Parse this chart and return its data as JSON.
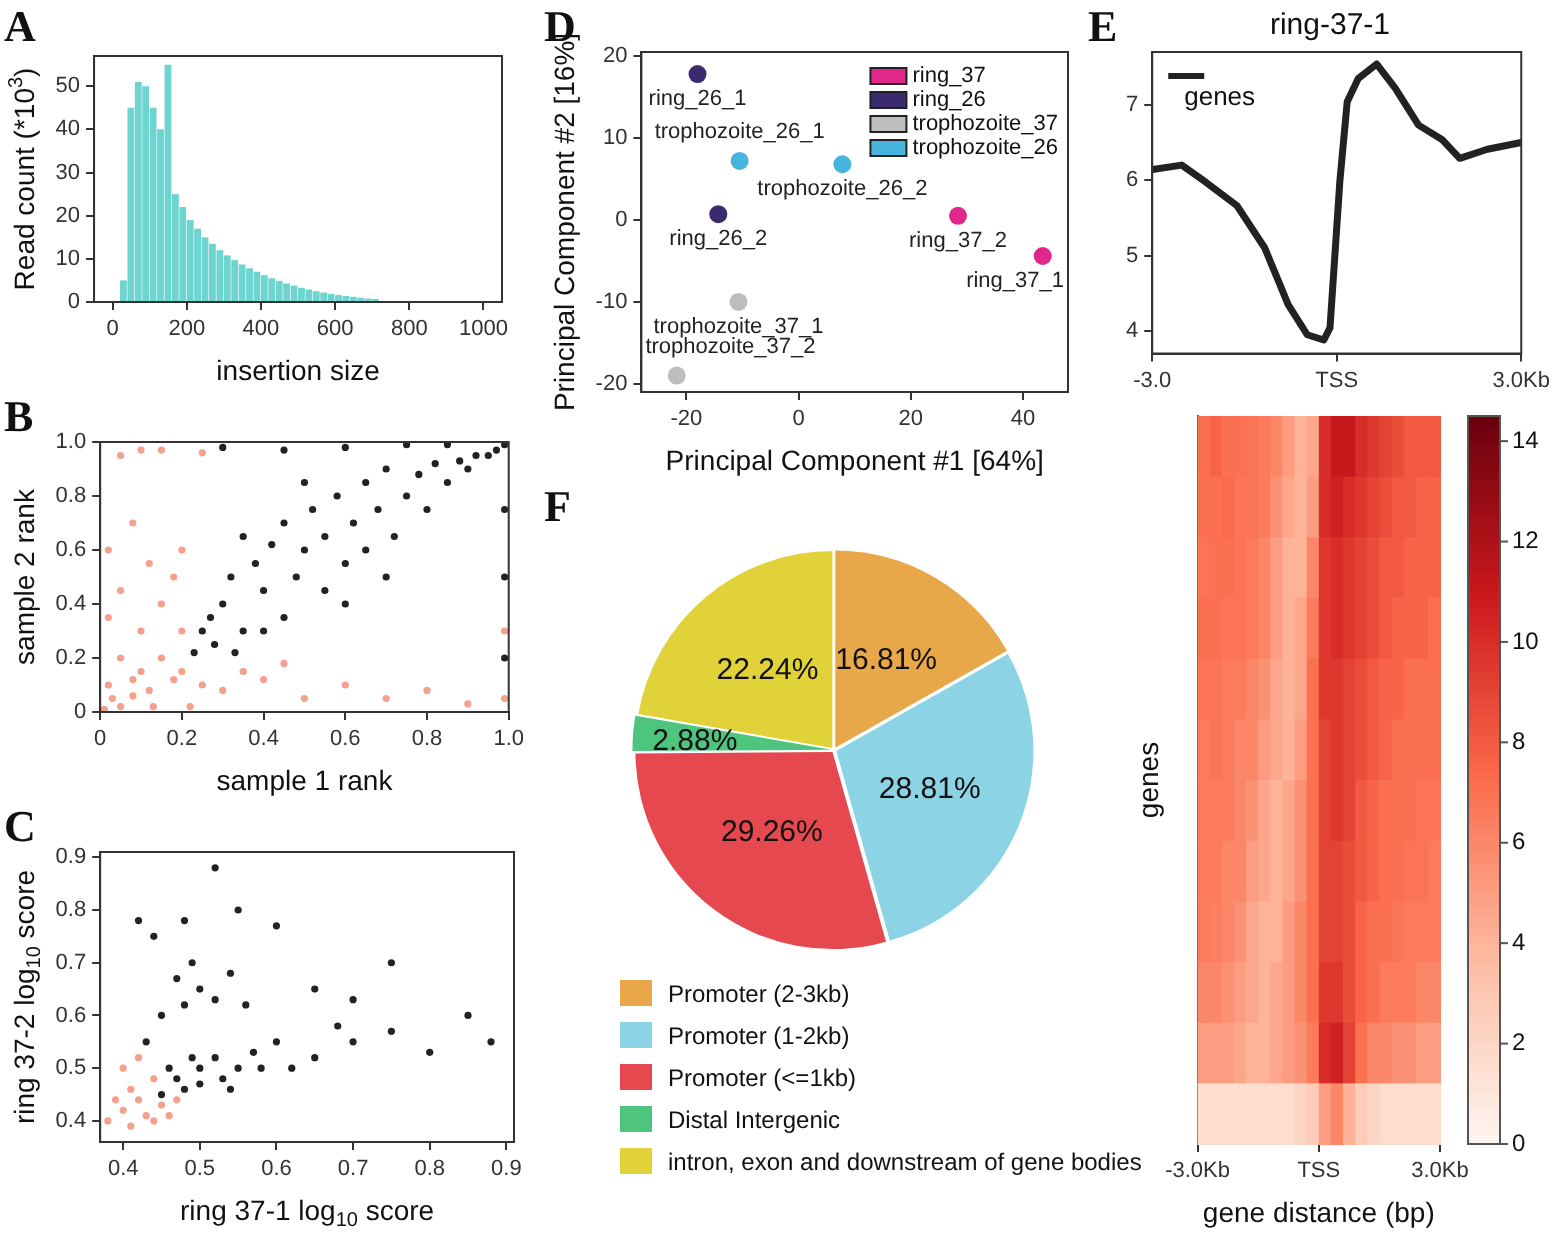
{
  "chart_data": [
    {
      "type": "histogram",
      "annotations": [
        "A"
      ],
      "xlabel": "insertion size",
      "ylabel": "Read count (*10$^{3}$)",
      "color": "#6dd4d0",
      "bins": [
        20,
        40,
        60,
        80,
        100,
        120,
        140,
        160,
        180,
        200,
        220,
        240,
        260,
        280,
        300,
        320,
        340,
        360,
        380,
        400,
        420,
        440,
        460,
        480,
        500,
        520,
        540,
        560,
        580,
        600,
        620,
        640,
        660,
        680,
        700,
        720
      ],
      "values": [
        5,
        45,
        51,
        50,
        45,
        40,
        55,
        25,
        22,
        19,
        17,
        15,
        13.5,
        12,
        10.8,
        9.7,
        8.7,
        7.8,
        7,
        6.2,
        5.5,
        4.9,
        4.3,
        3.8,
        3.3,
        2.9,
        2.5,
        2.2,
        1.9,
        1.6,
        1.4,
        1.2,
        1,
        0.8,
        0.7
      ],
      "xlim": [
        -50,
        1050
      ],
      "xticks": [
        0,
        200,
        400,
        600,
        800,
        1000
      ],
      "ylim": [
        0,
        57
      ],
      "yticks": [
        0,
        10,
        20,
        30,
        40,
        50
      ]
    },
    {
      "type": "scatter",
      "annotations": [
        "B"
      ],
      "xlabel": "sample 1 rank",
      "ylabel": "sample 2 rank",
      "xlim": [
        0,
        1
      ],
      "ylim": [
        0,
        1
      ],
      "xticks": [
        0,
        0.2,
        0.4,
        0.6,
        0.8,
        {
          "value": 1,
          "label": "1.0"
        }
      ],
      "yticks": [
        0,
        0.2,
        0.4,
        0.6,
        0.8,
        {
          "value": 1,
          "label": "1.0"
        }
      ],
      "marker": "circle",
      "series": [
        {
          "color": "#f4a08c",
          "x": [
            0.01,
            0.03,
            0.05,
            0.02,
            0.08,
            0.1,
            0.05,
            0.12,
            0.15,
            0.18,
            0.2,
            0.1,
            0.02,
            0.15,
            0.2,
            0.25,
            0.3,
            0.4,
            0.5,
            0.6,
            0.7,
            0.8,
            0.9,
            0.99,
            0.99,
            0.05,
            0.18,
            0.12,
            0.08,
            0.2,
            0.05,
            0.15,
            0.25,
            0.1,
            0.02,
            0.22,
            0.35,
            0.45,
            0.08,
            0.13
          ],
          "values": [
            0.01,
            0.05,
            0.02,
            0.1,
            0.06,
            0.15,
            0.2,
            0.08,
            0.2,
            0.12,
            0.3,
            0.3,
            0.35,
            0.4,
            0.15,
            0.1,
            0.08,
            0.12,
            0.05,
            0.1,
            0.05,
            0.08,
            0.03,
            0.05,
            0.3,
            0.45,
            0.5,
            0.55,
            0.7,
            0.6,
            0.95,
            0.97,
            0.96,
            0.97,
            0.6,
            0.02,
            0.15,
            0.18,
            0.12,
            0.02
          ]
        },
        {
          "color": "#222222",
          "x": [
            0.23,
            0.25,
            0.28,
            0.3,
            0.32,
            0.35,
            0.38,
            0.4,
            0.42,
            0.45,
            0.45,
            0.48,
            0.5,
            0.52,
            0.55,
            0.55,
            0.58,
            0.6,
            0.62,
            0.65,
            0.65,
            0.68,
            0.7,
            0.72,
            0.75,
            0.78,
            0.8,
            0.82,
            0.85,
            0.88,
            0.9,
            0.92,
            0.95,
            0.97,
            0.99,
            0.3,
            0.45,
            0.6,
            0.75,
            0.85,
            0.99,
            0.99,
            0.99,
            0.35,
            0.5,
            0.27,
            0.4,
            0.6,
            0.7,
            0.33
          ],
          "values": [
            0.22,
            0.3,
            0.25,
            0.4,
            0.5,
            0.3,
            0.55,
            0.45,
            0.62,
            0.35,
            0.7,
            0.5,
            0.6,
            0.75,
            0.45,
            0.65,
            0.8,
            0.55,
            0.7,
            0.85,
            0.6,
            0.75,
            0.9,
            0.65,
            0.8,
            0.88,
            0.75,
            0.92,
            0.85,
            0.93,
            0.9,
            0.95,
            0.95,
            0.97,
            0.99,
            0.98,
            0.97,
            0.98,
            0.99,
            0.99,
            0.5,
            0.2,
            0.75,
            0.65,
            0.85,
            0.35,
            0.3,
            0.4,
            0.5,
            0.22
          ]
        }
      ]
    },
    {
      "type": "scatter",
      "annotations": [
        "C"
      ],
      "xlabel": "ring 37-1 log$_{10}$ score",
      "ylabel": "ring 37-2 log$_{10}$ score",
      "xlim": [
        0.37,
        0.91
      ],
      "ylim": [
        0.36,
        0.91
      ],
      "xticks": [
        0.4,
        0.5,
        0.6,
        0.7,
        0.8,
        0.9
      ],
      "yticks": [
        0.4,
        0.5,
        0.6,
        0.7,
        0.8,
        0.9
      ],
      "marker": "circle",
      "series": [
        {
          "color": "#222222",
          "x": [
            0.45,
            0.47,
            0.48,
            0.5,
            0.52,
            0.5,
            0.53,
            0.55,
            0.57,
            0.6,
            0.49,
            0.46,
            0.54,
            0.58,
            0.62,
            0.65,
            0.7,
            0.75,
            0.8,
            0.85,
            0.48,
            0.5,
            0.52,
            0.47,
            0.54,
            0.45,
            0.56,
            0.49,
            0.44,
            0.48,
            0.55,
            0.52,
            0.6,
            0.65,
            0.7,
            0.75,
            0.68,
            0.42,
            0.88,
            0.43
          ],
          "values": [
            0.45,
            0.48,
            0.46,
            0.5,
            0.52,
            0.47,
            0.48,
            0.5,
            0.53,
            0.55,
            0.52,
            0.5,
            0.46,
            0.5,
            0.5,
            0.52,
            0.55,
            0.57,
            0.53,
            0.6,
            0.62,
            0.65,
            0.63,
            0.67,
            0.68,
            0.6,
            0.62,
            0.7,
            0.75,
            0.78,
            0.8,
            0.88,
            0.77,
            0.65,
            0.63,
            0.7,
            0.58,
            0.78,
            0.55,
            0.55
          ]
        },
        {
          "color": "#f4a08c",
          "x": [
            0.38,
            0.4,
            0.42,
            0.43,
            0.41,
            0.44,
            0.45,
            0.4,
            0.46,
            0.39,
            0.42,
            0.47,
            0.44,
            0.41
          ],
          "values": [
            0.4,
            0.42,
            0.44,
            0.41,
            0.46,
            0.48,
            0.43,
            0.5,
            0.41,
            0.44,
            0.52,
            0.44,
            0.4,
            0.39
          ]
        }
      ]
    },
    {
      "type": "scatter",
      "xlabel": "Principal Component #1 [64%]",
      "ylabel": "Principal Component #2 [16%]",
      "xlim": [
        -28,
        48
      ],
      "ylim": [
        -21,
        20.5
      ],
      "xticks": [
        -20,
        0,
        20,
        40
      ],
      "yticks": [
        -20,
        -10,
        0,
        10,
        20
      ],
      "legend": "top right",
      "marker": "circle",
      "annotations": [
        "D",
        {
          "text": "ring_26_1",
          "x": -18,
          "y": 17.8
        },
        {
          "text": "trophozoite_26_1",
          "x": -10.5,
          "y": 7.2
        },
        {
          "text": "trophozoite_26_2",
          "x": 7.8,
          "y": 6.8
        },
        {
          "text": "ring_26_2",
          "x": -14.3,
          "y": 0.7
        },
        {
          "text": "ring_37_2",
          "x": 28.4,
          "y": 0.5
        },
        {
          "text": "ring_37_1",
          "x": 43.5,
          "y": -4.4
        },
        {
          "text": "trophozoite_37_1",
          "x": -10.7,
          "y": -10
        },
        {
          "text": "trophozoite_37_2",
          "x": -21.7,
          "y": -19
        }
      ],
      "series": [
        {
          "name": "ring_37",
          "color": "#e0288a",
          "x": [
            28.4,
            43.5
          ],
          "values": [
            0.5,
            -4.4
          ]
        },
        {
          "name": "ring_26",
          "color": "#3b2a6e",
          "x": [
            -18,
            -14.3
          ],
          "values": [
            17.8,
            0.7
          ]
        },
        {
          "name": "trophozoite_37",
          "color": "#bdbdbd",
          "x": [
            -10.7,
            -21.7
          ],
          "values": [
            -10,
            -19
          ]
        },
        {
          "name": "trophozoite_26",
          "color": "#45b5dd",
          "x": [
            -10.5,
            7.8
          ],
          "values": [
            7.2,
            6.8
          ]
        }
      ]
    },
    {
      "type": "line",
      "title": "ring-37-1",
      "annotations": [
        "E"
      ],
      "xlim": [
        -3,
        3
      ],
      "xticks": [
        {
          "value": -3,
          "label": "-3.0"
        },
        {
          "value": 0,
          "label": "TSS"
        },
        {
          "value": 3,
          "label": "3.0Kb"
        }
      ],
      "ylim": [
        3.7,
        7.7
      ],
      "yticks": [
        4,
        5,
        6,
        7
      ],
      "legend": "top left",
      "marker": "none",
      "series": [
        {
          "name": "genes",
          "color": "#222222",
          "x": [
            -3,
            -2.52,
            -2.14,
            -1.62,
            -1.17,
            -0.79,
            -0.48,
            -0.21,
            -0.11,
            0.05,
            0.17,
            0.35,
            0.65,
            0.95,
            1.33,
            1.71,
            2.0,
            2.45,
            3
          ],
          "values": [
            6.14,
            6.2,
            5.98,
            5.66,
            5.1,
            4.35,
            3.95,
            3.88,
            4.04,
            5.98,
            7.04,
            7.35,
            7.54,
            7.22,
            6.73,
            6.54,
            6.29,
            6.41,
            6.5
          ]
        }
      ]
    },
    {
      "type": "heatmap",
      "xlabel": "gene distance (bp)",
      "ylabel": "genes",
      "xlim": [
        -3,
        3
      ],
      "xticks": [
        {
          "value": -3,
          "label": "-3.0Kb"
        },
        {
          "value": 0,
          "label": "TSS"
        },
        {
          "value": 3,
          "label": "3.0Kb"
        }
      ],
      "x": [
        -2.85,
        -2.55,
        -2.25,
        -1.95,
        -1.65,
        -1.35,
        -1.05,
        -0.75,
        -0.45,
        -0.15,
        0.15,
        0.45,
        0.75,
        1.05,
        1.35,
        1.65,
        1.95,
        2.25,
        2.55,
        2.85
      ],
      "y_categories": [
        null,
        null,
        null,
        null,
        null,
        null,
        null,
        null,
        null,
        null,
        null,
        null
      ],
      "clim": [
        0,
        14.5
      ],
      "cticks": [
        0,
        2,
        4,
        6,
        8,
        10,
        12,
        14
      ],
      "cells": [
        [
          7,
          7.5,
          7,
          7,
          6.8,
          6.5,
          6,
          5,
          4,
          4.5,
          10,
          11,
          11,
          10,
          9.5,
          9,
          8.5,
          8,
          8,
          8
        ],
        [
          7,
          7,
          7.2,
          6.8,
          6.8,
          6.5,
          5.5,
          4.5,
          4,
          5,
          10,
          10.5,
          10,
          9.5,
          9,
          8.5,
          8,
          8,
          7.5,
          7.5
        ],
        [
          6.8,
          7,
          7,
          6.8,
          6.5,
          6,
          5,
          4,
          4,
          6,
          9.5,
          10,
          9.5,
          9,
          8.5,
          8,
          8,
          7.5,
          7.5,
          7.5
        ],
        [
          7,
          7,
          6.8,
          6.8,
          6.5,
          6,
          5,
          4,
          4.5,
          6.5,
          9.5,
          10,
          9.5,
          9,
          8.5,
          8,
          7.5,
          7.5,
          7.5,
          7
        ],
        [
          6.8,
          6.8,
          6.5,
          6.5,
          6,
          5.5,
          4.5,
          4,
          4.5,
          7,
          9.5,
          9.5,
          9,
          8.5,
          8,
          7.5,
          7.5,
          7,
          7,
          7
        ],
        [
          6.5,
          6.8,
          6.5,
          6,
          6,
          5,
          4.5,
          4,
          5,
          7,
          9,
          9.5,
          9,
          8.5,
          8,
          7.5,
          7,
          7,
          7,
          7
        ],
        [
          6.5,
          6.5,
          6.5,
          6,
          5.5,
          4.5,
          4,
          4.5,
          5.5,
          7,
          9,
          9.5,
          9,
          8,
          7.5,
          7,
          7,
          7,
          6.8,
          6.8
        ],
        [
          6.5,
          6.5,
          6,
          6,
          5,
          4.5,
          4,
          4.5,
          5.5,
          7,
          9,
          9,
          8.5,
          8,
          7.5,
          7,
          7,
          6.8,
          6.8,
          6.5
        ],
        [
          6.5,
          6.3,
          6,
          5.5,
          4.5,
          4,
          4,
          5,
          6,
          7,
          9,
          9,
          8.5,
          7.5,
          7,
          7,
          6.8,
          6.5,
          6.5,
          6.5
        ],
        [
          6,
          6,
          5.5,
          5,
          4.5,
          4,
          4.5,
          5,
          6,
          7,
          9.5,
          9.5,
          8.5,
          7.5,
          7,
          6.5,
          6.5,
          6.5,
          6,
          6
        ],
        [
          5,
          5,
          5,
          4.5,
          4,
          4,
          4.5,
          5,
          5.5,
          6.5,
          10,
          10.5,
          9,
          7,
          6,
          6,
          5.5,
          5.5,
          5,
          5
        ],
        [
          1.5,
          1.5,
          1.5,
          1.5,
          1.5,
          1.5,
          1.5,
          1.5,
          2,
          2.5,
          5,
          6,
          4,
          2.5,
          2,
          1.5,
          1.5,
          1.5,
          1.5,
          1.5
        ]
      ]
    },
    {
      "type": "pie",
      "annotations": [
        "F"
      ],
      "legend": "bottom",
      "categories": [
        "Promoter (2-3kb)",
        "Promoter (1-2kb)",
        "Promoter (<=1kb)",
        "Distal Intergenic",
        "intron, exon and downstream of gene bodies"
      ],
      "values": [
        16.81,
        28.81,
        29.26,
        2.88,
        22.24
      ],
      "value_labels": [
        "16.81%",
        "28.81%",
        "29.26%",
        "2.88%",
        "22.24%"
      ],
      "colors": [
        "#e8a84a",
        "#8dd3e6",
        "#e5484e",
        "#4ec57e",
        "#e2d23a"
      ]
    }
  ]
}
